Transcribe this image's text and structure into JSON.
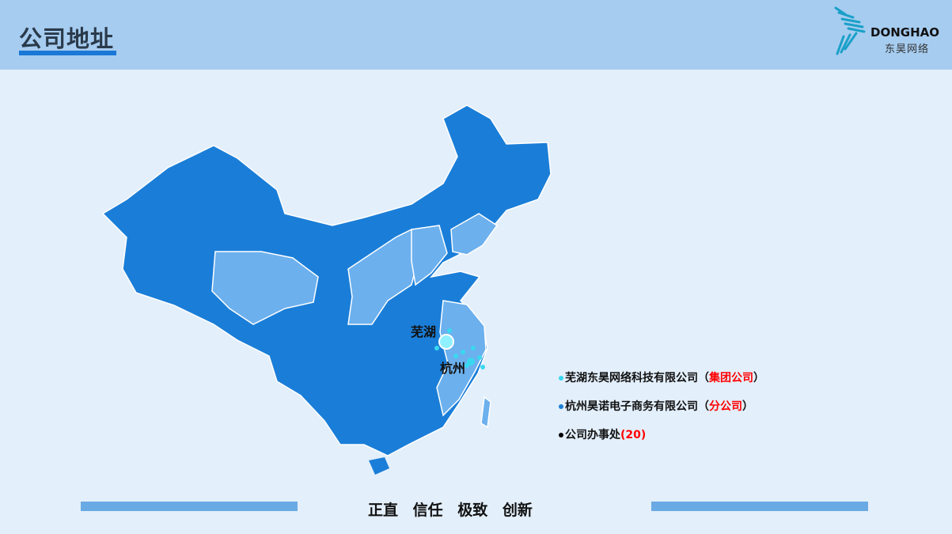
{
  "header": {
    "title": "公司地址"
  },
  "logo": {
    "en": "DONGHAO",
    "cn": "东昊网络"
  },
  "map": {
    "cities": [
      "芜湖",
      "杭州"
    ],
    "colors": {
      "dark": "#1a7ed8",
      "light": "#6cb0ee"
    }
  },
  "legend": [
    {
      "name": "芜湖东昊网络科技有限公司",
      "tag": "集团公司",
      "dot": "#3ad8f0",
      "open": "（",
      "close": "）"
    },
    {
      "name": "杭州昊诺电子商务有限公司",
      "tag": "分公司",
      "dot": "#1a7ed8",
      "open": "（",
      "close": "）"
    },
    {
      "name": "公司办事处",
      "tag": "(20)",
      "dot": "#000000",
      "open": "",
      "close": ""
    }
  ],
  "footer": {
    "motto": "正直 信任 极致 创新"
  }
}
